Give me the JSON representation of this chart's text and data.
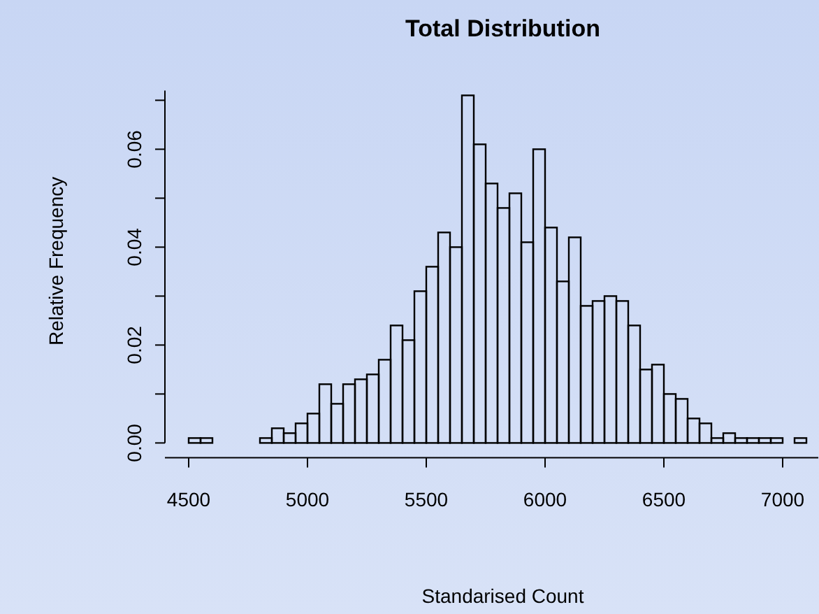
{
  "chart_data": {
    "type": "histogram",
    "title": "Total Distribution",
    "xlabel": "Standarised Count",
    "ylabel": "Relative Frequency",
    "bins": [
      4500,
      4550,
      4600,
      4650,
      4700,
      4750,
      4800,
      4850,
      4900,
      4950,
      5000,
      5050,
      5100,
      5150,
      5200,
      5250,
      5300,
      5350,
      5400,
      5450,
      5500,
      5550,
      5600,
      5650,
      5700,
      5750,
      5800,
      5850,
      5900,
      5950,
      6000,
      6050,
      6100,
      6150,
      6200,
      6250,
      6300,
      6350,
      6400,
      6450,
      6500,
      6550,
      6600,
      6650,
      6700,
      6750,
      6800,
      6850,
      6900,
      6950,
      7000,
      7050,
      7100
    ],
    "values": [
      0.001,
      0.001,
      0,
      0,
      0,
      0,
      0.001,
      0.003,
      0.002,
      0.004,
      0.006,
      0.012,
      0.008,
      0.012,
      0.013,
      0.014,
      0.017,
      0.024,
      0.021,
      0.031,
      0.036,
      0.043,
      0.04,
      0.071,
      0.061,
      0.053,
      0.048,
      0.051,
      0.041,
      0.06,
      0.044,
      0.033,
      0.042,
      0.028,
      0.029,
      0.03,
      0.029,
      0.024,
      0.015,
      0.016,
      0.01,
      0.009,
      0.005,
      0.004,
      0.001,
      0.002,
      0.001,
      0.001,
      0.001,
      0.001,
      0,
      0.001
    ],
    "color": "#000000",
    "xlim": [
      4400,
      7150
    ],
    "xticks": [
      4500,
      5000,
      5500,
      6000,
      6500,
      7000
    ],
    "ylim": [
      0,
      0.072
    ],
    "yticks": [
      {
        "value": 0,
        "label": "0.00"
      },
      {
        "value": 0.01,
        "label": null
      },
      {
        "value": 0.02,
        "label": "0.02"
      },
      {
        "value": 0.03,
        "label": null
      },
      {
        "value": 0.04,
        "label": "0.04"
      },
      {
        "value": 0.05,
        "label": null
      },
      {
        "value": 0.06,
        "label": "0.06"
      },
      {
        "value": 0.07,
        "label": null
      }
    ],
    "grid": false
  }
}
